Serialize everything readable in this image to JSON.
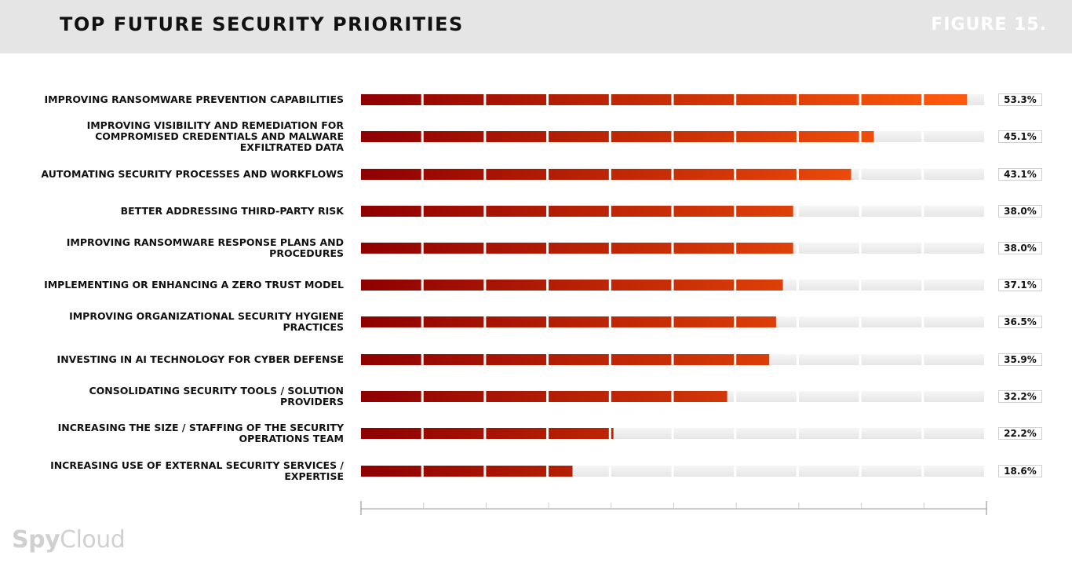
{
  "header": {
    "title": "TOP FUTURE SECURITY PRIORITIES",
    "figure_label": "FIGURE 15."
  },
  "logo": {
    "part1": "Spy",
    "part2": "Cloud"
  },
  "colors": {
    "bar_dark": "#8e0000",
    "bar_light": "#ff5a0d",
    "track": "#eeeeee",
    "axis": "#999999"
  },
  "chart_data": {
    "type": "bar",
    "orientation": "horizontal",
    "xlim": [
      0,
      55
    ],
    "grid": false,
    "categories": [
      "IMPROVING RANSOMWARE PREVENTION CAPABILITIES",
      "IMPROVING VISIBILITY AND REMEDIATION FOR COMPROMISED CREDENTIALS AND MALWARE EXFILTRATED DATA",
      "AUTOMATING SECURITY PROCESSES AND WORKFLOWS",
      "BETTER ADDRESSING THIRD-PARTY RISK",
      "IMPROVING RANSOMWARE RESPONSE PLANS AND PROCEDURES",
      "IMPLEMENTING OR ENHANCING A ZERO TRUST MODEL",
      "IMPROVING ORGANIZATIONAL SECURITY HYGIENE PRACTICES",
      "INVESTING IN AI TECHNOLOGY FOR CYBER DEFENSE",
      "CONSOLIDATING SECURITY TOOLS / SOLUTION PROVIDERS",
      "INCREASING THE SIZE / STAFFING OF THE SECURITY OPERATIONS TEAM",
      "INCREASING USE OF EXTERNAL SECURITY SERVICES / EXPERTISE"
    ],
    "values": [
      53.3,
      45.1,
      43.1,
      38.0,
      38.0,
      37.1,
      36.5,
      35.9,
      32.2,
      22.2,
      18.6
    ],
    "value_labels": [
      "53.3%",
      "45.1%",
      "43.1%",
      "38.0%",
      "38.0%",
      "37.1%",
      "36.5%",
      "35.9%",
      "32.2%",
      "22.2%",
      "18.6%"
    ]
  }
}
